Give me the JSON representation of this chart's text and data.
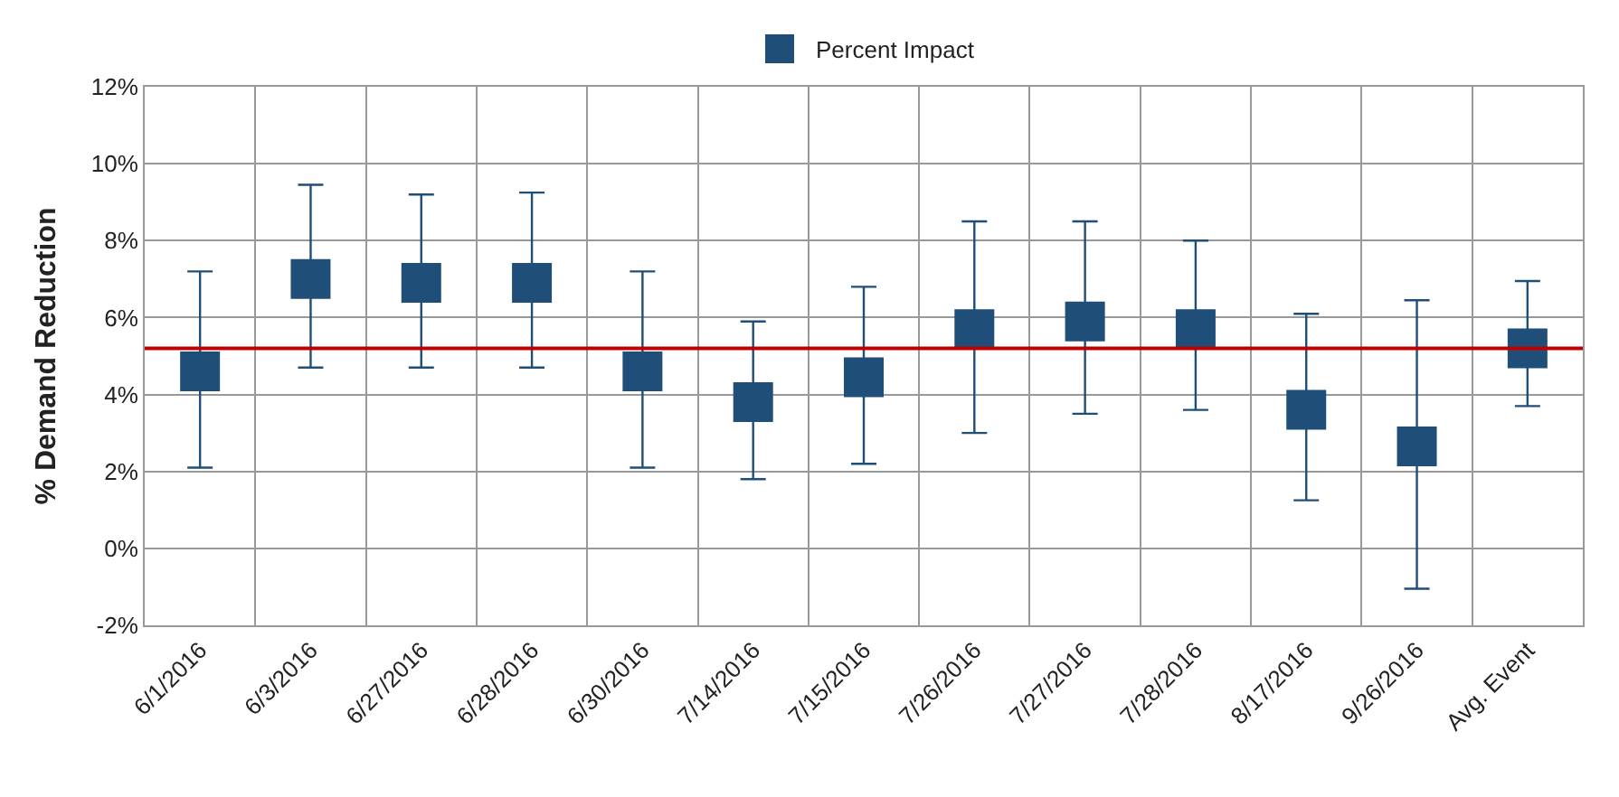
{
  "chart_data": {
    "type": "scatter",
    "ylabel": "% Demand Reduction",
    "categories": [
      "6/1/2016",
      "6/3/2016",
      "6/27/2016",
      "6/28/2016",
      "6/30/2016",
      "7/14/2016",
      "7/15/2016",
      "7/26/2016",
      "7/27/2016",
      "7/28/2016",
      "8/17/2016",
      "9/26/2016",
      "Avg. Event"
    ],
    "series": [
      {
        "name": "Percent Impact",
        "color": "#1f4e79",
        "values": [
          4.6,
          7.0,
          6.9,
          6.9,
          4.6,
          3.8,
          4.45,
          5.7,
          5.9,
          5.7,
          3.6,
          2.65,
          5.2
        ],
        "errors": [
          [
            2.1,
            7.2
          ],
          [
            4.7,
            9.45
          ],
          [
            4.7,
            9.2
          ],
          [
            4.7,
            9.25
          ],
          [
            2.1,
            7.2
          ],
          [
            1.8,
            5.9
          ],
          [
            2.2,
            6.8
          ],
          [
            3.0,
            8.5
          ],
          [
            3.5,
            8.5
          ],
          [
            3.6,
            8.0
          ],
          [
            1.25,
            6.1
          ],
          [
            -1.05,
            6.45
          ],
          [
            3.7,
            6.95
          ]
        ]
      }
    ],
    "ylim": [
      -2,
      12
    ],
    "yticks": [
      {
        "value": -2,
        "label": "-2%"
      },
      {
        "value": 0,
        "label": "0%"
      },
      {
        "value": 2,
        "label": "2%"
      },
      {
        "value": 4,
        "label": "4%"
      },
      {
        "value": 6,
        "label": "6%"
      },
      {
        "value": 8,
        "label": "8%"
      },
      {
        "value": 10,
        "label": "10%"
      },
      {
        "value": 12,
        "label": "12%"
      }
    ],
    "ref_lines": [
      {
        "axis": "y",
        "value": 5.2,
        "color": "#c00000"
      }
    ],
    "grid": true,
    "legend": "top",
    "marker": "square"
  }
}
